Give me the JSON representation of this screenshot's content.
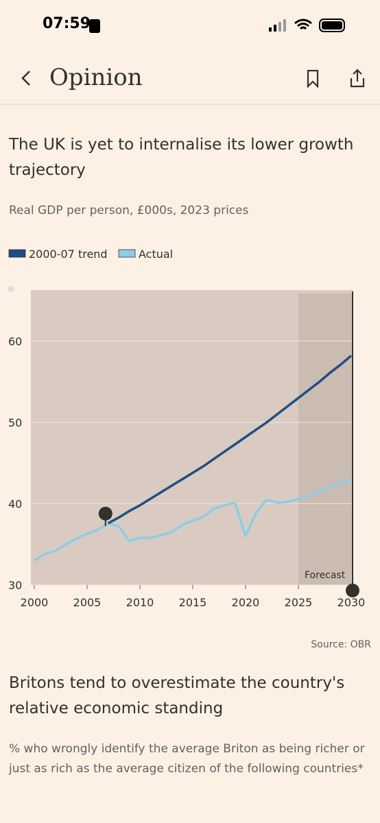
{
  "status_bar": {
    "time": "07:59"
  },
  "nav": {
    "title": "Opinion"
  },
  "chart_data": {
    "type": "line",
    "title": "The UK is yet to internalise its lower growth trajectory",
    "subtitle": "Real GDP per person, £000s, 2023 prices",
    "x": [
      2000,
      2001,
      2002,
      2003,
      2004,
      2005,
      2006,
      2007,
      2008,
      2009,
      2010,
      2011,
      2012,
      2013,
      2014,
      2015,
      2016,
      2017,
      2018,
      2019,
      2020,
      2021,
      2022,
      2023,
      2024,
      2025,
      2026,
      2027,
      2028,
      2029,
      2030
    ],
    "series": [
      {
        "name": "2000-07 trend",
        "color": "#1f4e83",
        "values": [
          null,
          null,
          null,
          null,
          null,
          null,
          null,
          37.6,
          38.3,
          39.1,
          39.8,
          40.6,
          41.4,
          42.2,
          43.0,
          43.8,
          44.6,
          45.5,
          46.4,
          47.3,
          48.2,
          49.1,
          50.0,
          51.0,
          52.0,
          53.0,
          54.0,
          55.0,
          56.1,
          57.1,
          58.2
        ]
      },
      {
        "name": "Actual",
        "color": "#8ecde3",
        "values": [
          33.0,
          33.8,
          34.2,
          35.0,
          35.7,
          36.3,
          36.8,
          37.6,
          37.2,
          35.4,
          35.8,
          35.8,
          36.1,
          36.5,
          37.4,
          37.9,
          38.4,
          39.4,
          39.8,
          40.1,
          36.0,
          38.9,
          40.5,
          40.1,
          40.2,
          40.6,
          41.0,
          41.5,
          42.0,
          42.5,
          43.0
        ]
      }
    ],
    "xlim": [
      2000,
      2030
    ],
    "ylim": [
      30,
      65
    ],
    "xticks": [
      2000,
      2005,
      2010,
      2015,
      2020,
      2025,
      2030
    ],
    "yticks": [
      30,
      40,
      50,
      60
    ],
    "shaded_x": [
      2025,
      2030
    ],
    "annotation": "Forecast",
    "source": "Source: OBR"
  },
  "next_section": {
    "title": "Britons tend to overestimate the country's relative economic standing",
    "subtitle": "% who wrongly identify the average Briton as being richer or just as rich as the average citizen of the following countries*"
  }
}
